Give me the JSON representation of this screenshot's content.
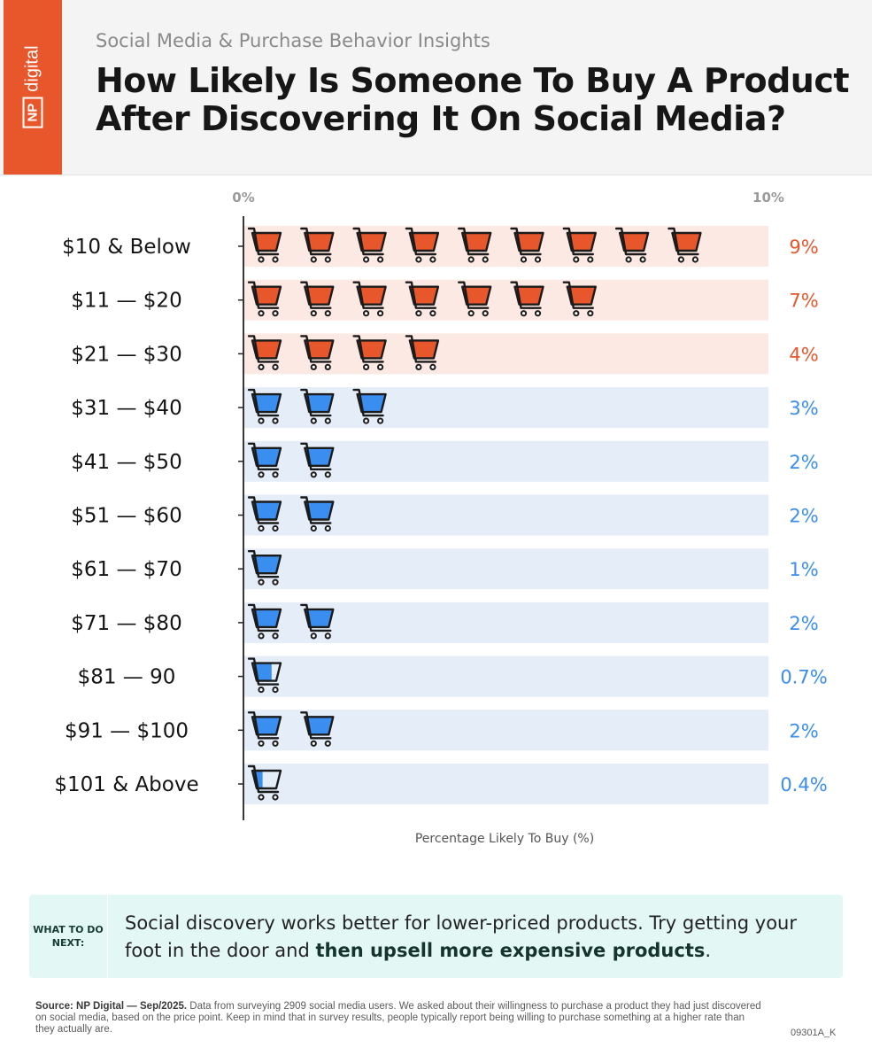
{
  "brand": {
    "logo_np": "NP",
    "logo_text": "digital",
    "color": "#e8562b"
  },
  "header": {
    "subtitle": "Social Media & Purchase Behavior Insights",
    "title": "How Likely Is Someone To Buy A Product After Discovering It On Social Media?"
  },
  "chart_data": {
    "type": "bar",
    "subtype": "pictograph",
    "icon": "shopping-cart-icon",
    "categories": [
      "$10 & Below",
      "$11 — $20",
      "$21 — $30",
      "$31 — $40",
      "$41 — $50",
      "$51 — $60",
      "$61 — $70",
      "$71 — $80",
      "$81 — 90",
      "$91 — $100",
      "$101 & Above"
    ],
    "values": [
      9,
      7,
      4,
      3,
      2,
      2,
      1,
      2,
      0.7,
      2,
      0.4
    ],
    "value_labels": [
      "9%",
      "7%",
      "4%",
      "3%",
      "2%",
      "2%",
      "1%",
      "2%",
      "0.7%",
      "2%",
      "0.4%"
    ],
    "xlim": [
      0,
      10
    ],
    "xtick_labels": [
      "0%",
      "10%"
    ],
    "xlabel": "Percentage Likely To Buy (%)",
    "highlight_count": 3,
    "colors": {
      "highlight": "#e8562b",
      "highlight_row": "#fde9e3",
      "normal": "#3a8ef0",
      "normal_row": "#e4edf8",
      "outline": "#1b1b1b"
    },
    "grid": false,
    "legend": "none"
  },
  "next": {
    "label": "WHAT TO DO NEXT:",
    "text_plain": "Social discovery works better for lower-priced products. Try getting your foot in the door and ",
    "text_bold": "then upsell more expensive products",
    "text_end": "."
  },
  "footer": {
    "source_bold": "Source: NP Digital — Sep/2025.",
    "source_text": " Data from surveying 2909 social media users. We asked about their willingness to purchase a product they had just discovered on social media, based on the price point. Keep in mind that in survey results, people typically report being willing to purchase something at a higher rate than they actually are.",
    "code": "09301A_K"
  }
}
